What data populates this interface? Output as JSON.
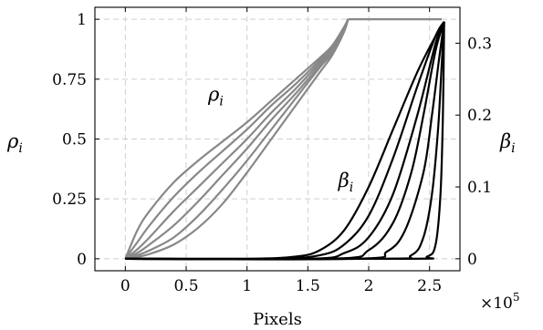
{
  "chart_data": {
    "type": "line",
    "xlabel": "Pixels",
    "x_exponent_label": "×10",
    "x_exponent_power": "5",
    "x_scale": 100000,
    "xlim": [
      -25000,
      275000
    ],
    "xticks": [
      0,
      0.5,
      1,
      1.5,
      2,
      2.5
    ],
    "xtick_labels": [
      "0",
      "0.5",
      "1",
      "1.5",
      "2",
      "2.5"
    ],
    "y_left": {
      "label_main": "ρ",
      "label_sub": "i",
      "lim": [
        -0.05,
        1.05
      ],
      "ticks": [
        0,
        0.25,
        0.5,
        0.75,
        1
      ],
      "tick_labels": [
        "0",
        "0.25",
        "0.5",
        "0.75",
        "1"
      ]
    },
    "y_right": {
      "label_main": "β",
      "label_sub": "i",
      "lim": [
        -0.01667,
        0.35
      ],
      "ticks": [
        0,
        0.1,
        0.2,
        0.3
      ],
      "tick_labels": [
        "0",
        "0.1",
        "0.2",
        "0.3"
      ]
    },
    "grid": true,
    "annotations": [
      {
        "text_main": "ρ",
        "text_sub": "i",
        "x": 68000,
        "y_left": 0.66
      },
      {
        "text_main": "β",
        "text_sub": "i",
        "x": 175000,
        "y_left": 0.3
      }
    ],
    "rho_color": "#888888",
    "beta_color": "#000000",
    "rho_series": [
      {
        "axis": "left",
        "points": [
          [
            0,
            0
          ],
          [
            10000,
            0.12
          ],
          [
            20000,
            0.2
          ],
          [
            40000,
            0.32
          ],
          [
            60000,
            0.41
          ],
          [
            80000,
            0.49
          ],
          [
            100000,
            0.57
          ],
          [
            120000,
            0.66
          ],
          [
            140000,
            0.75
          ],
          [
            160000,
            0.84
          ],
          [
            170000,
            0.89
          ],
          [
            180000,
            0.97
          ],
          [
            183000,
            1.0
          ]
        ]
      },
      {
        "axis": "left",
        "points": [
          [
            0,
            0
          ],
          [
            10000,
            0.07
          ],
          [
            20000,
            0.14
          ],
          [
            40000,
            0.26
          ],
          [
            60000,
            0.36
          ],
          [
            80000,
            0.45
          ],
          [
            100000,
            0.54
          ],
          [
            120000,
            0.64
          ],
          [
            140000,
            0.73
          ],
          [
            160000,
            0.83
          ],
          [
            170000,
            0.88
          ],
          [
            180000,
            0.96
          ],
          [
            183000,
            1.0
          ]
        ]
      },
      {
        "axis": "left",
        "points": [
          [
            0,
            0
          ],
          [
            10000,
            0.04
          ],
          [
            20000,
            0.09
          ],
          [
            40000,
            0.2
          ],
          [
            60000,
            0.3
          ],
          [
            80000,
            0.4
          ],
          [
            100000,
            0.5
          ],
          [
            120000,
            0.61
          ],
          [
            140000,
            0.71
          ],
          [
            160000,
            0.82
          ],
          [
            170000,
            0.87
          ],
          [
            180000,
            0.96
          ],
          [
            183000,
            1.0
          ]
        ]
      },
      {
        "axis": "left",
        "points": [
          [
            0,
            0
          ],
          [
            10000,
            0.025
          ],
          [
            20000,
            0.06
          ],
          [
            40000,
            0.14
          ],
          [
            60000,
            0.24
          ],
          [
            80000,
            0.35
          ],
          [
            100000,
            0.46
          ],
          [
            120000,
            0.58
          ],
          [
            140000,
            0.69
          ],
          [
            160000,
            0.81
          ],
          [
            170000,
            0.87
          ],
          [
            180000,
            0.96
          ],
          [
            183000,
            1.0
          ]
        ]
      },
      {
        "axis": "left",
        "points": [
          [
            0,
            0
          ],
          [
            10000,
            0.015
          ],
          [
            20000,
            0.035
          ],
          [
            40000,
            0.09
          ],
          [
            60000,
            0.18
          ],
          [
            80000,
            0.29
          ],
          [
            100000,
            0.41
          ],
          [
            120000,
            0.54
          ],
          [
            140000,
            0.67
          ],
          [
            160000,
            0.8
          ],
          [
            170000,
            0.86
          ],
          [
            180000,
            0.96
          ],
          [
            183000,
            1.0
          ]
        ]
      },
      {
        "axis": "left",
        "points": [
          [
            0,
            0
          ],
          [
            10000,
            0.008
          ],
          [
            20000,
            0.02
          ],
          [
            40000,
            0.06
          ],
          [
            60000,
            0.13
          ],
          [
            80000,
            0.23
          ],
          [
            100000,
            0.36
          ],
          [
            120000,
            0.5
          ],
          [
            140000,
            0.64
          ],
          [
            160000,
            0.78
          ],
          [
            170000,
            0.85
          ],
          [
            180000,
            0.95
          ],
          [
            183000,
            1.0
          ]
        ]
      },
      {
        "axis": "left",
        "points": [
          [
            183000,
            1.0
          ],
          [
            260000,
            1.0
          ]
        ]
      }
    ],
    "beta_series": [
      {
        "axis": "right",
        "points": [
          [
            0,
            0
          ],
          [
            100000,
            0
          ],
          [
            140000,
            0.003
          ],
          [
            160000,
            0.012
          ],
          [
            180000,
            0.04
          ],
          [
            200000,
            0.1
          ],
          [
            220000,
            0.18
          ],
          [
            240000,
            0.26
          ],
          [
            255000,
            0.31
          ],
          [
            262000,
            0.33
          ]
        ]
      },
      {
        "axis": "right",
        "points": [
          [
            0,
            0
          ],
          [
            120000,
            0
          ],
          [
            160000,
            0.005
          ],
          [
            180000,
            0.02
          ],
          [
            200000,
            0.06
          ],
          [
            220000,
            0.14
          ],
          [
            240000,
            0.24
          ],
          [
            255000,
            0.31
          ],
          [
            262000,
            0.33
          ]
        ]
      },
      {
        "axis": "right",
        "points": [
          [
            0,
            0
          ],
          [
            150000,
            0
          ],
          [
            180000,
            0.008
          ],
          [
            200000,
            0.03
          ],
          [
            220000,
            0.09
          ],
          [
            240000,
            0.2
          ],
          [
            255000,
            0.3
          ],
          [
            262000,
            0.33
          ]
        ]
      },
      {
        "axis": "right",
        "points": [
          [
            0,
            0
          ],
          [
            170000,
            0
          ],
          [
            200000,
            0.012
          ],
          [
            220000,
            0.05
          ],
          [
            235000,
            0.12
          ],
          [
            245000,
            0.2
          ],
          [
            255000,
            0.29
          ],
          [
            262000,
            0.33
          ]
        ]
      },
      {
        "axis": "right",
        "points": [
          [
            0,
            0
          ],
          [
            190000,
            0
          ],
          [
            215000,
            0.01
          ],
          [
            230000,
            0.04
          ],
          [
            245000,
            0.12
          ],
          [
            252000,
            0.2
          ],
          [
            258000,
            0.28
          ],
          [
            262000,
            0.33
          ]
        ]
      },
      {
        "axis": "right",
        "points": [
          [
            0,
            0
          ],
          [
            210000,
            0
          ],
          [
            235000,
            0.005
          ],
          [
            245000,
            0.03
          ],
          [
            252000,
            0.09
          ],
          [
            257000,
            0.18
          ],
          [
            260000,
            0.27
          ],
          [
            262000,
            0.33
          ]
        ]
      },
      {
        "axis": "right",
        "points": [
          [
            0,
            0
          ],
          [
            230000,
            0
          ],
          [
            248000,
            0.003
          ],
          [
            255000,
            0.02
          ],
          [
            259000,
            0.09
          ],
          [
            261000,
            0.2
          ],
          [
            262000,
            0.33
          ]
        ]
      }
    ]
  }
}
